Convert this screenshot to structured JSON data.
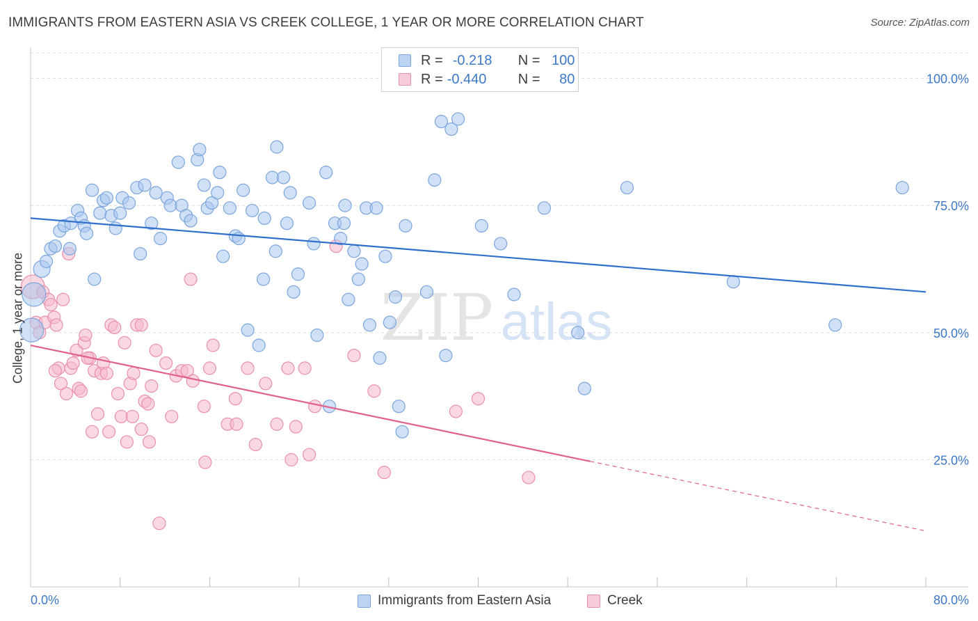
{
  "header": {
    "title": "IMMIGRANTS FROM EASTERN ASIA VS CREEK COLLEGE, 1 YEAR OR MORE CORRELATION CHART",
    "source": "Source: ZipAtlas.com"
  },
  "legend": {
    "rows": [
      {
        "r_label": "R =",
        "r_value": "-0.218",
        "n_label": "N =",
        "n_value": "100"
      },
      {
        "r_label": "R =",
        "r_value": "-0.440",
        "n_label": "N =",
        "n_value": "80"
      }
    ]
  },
  "watermark": {
    "zip": "ZIP",
    "atlas": "atlas"
  },
  "colors": {
    "blue_fill": "#a9c6ee",
    "blue_stroke": "#7aa5dd",
    "blue_line": "#2f6fcc",
    "pink_fill": "#f6b8cb",
    "pink_stroke": "#ea8fab",
    "pink_line": "#e0608e",
    "axis_text": "#3d78c8",
    "grid": "#dddddd"
  },
  "chart_data": {
    "type": "scatter",
    "title": "IMMIGRANTS FROM EASTERN ASIA VS CREEK COLLEGE, 1 YEAR OR MORE CORRELATION CHART",
    "xlabel": "",
    "ylabel": "College, 1 year or more",
    "xlim": [
      0,
      80
    ],
    "ylim": [
      0,
      105
    ],
    "x_tick_labels": [
      "0.0%",
      "80.0%"
    ],
    "y_tick_values": [
      25,
      50,
      75,
      100
    ],
    "y_tick_labels": [
      "25.0%",
      "50.0%",
      "75.0%",
      "100.0%"
    ],
    "grid": true,
    "legend_position": "top-center",
    "series": [
      {
        "name": "Immigrants from Eastern Asia",
        "color": "#a9c6ee",
        "trend": {
          "x": [
            0,
            80
          ],
          "y": [
            72.5,
            58.0
          ],
          "dashed_from": null
        },
        "points": [
          [
            0.1,
            50.5
          ],
          [
            0.3,
            57.5
          ],
          [
            1.0,
            62.5
          ],
          [
            1.4,
            64.0
          ],
          [
            1.8,
            66.5
          ],
          [
            2.2,
            67.0
          ],
          [
            2.6,
            70.0
          ],
          [
            3.0,
            71.0
          ],
          [
            3.5,
            66.5
          ],
          [
            3.6,
            71.5
          ],
          [
            4.2,
            74.0
          ],
          [
            4.5,
            72.5
          ],
          [
            4.8,
            71.0
          ],
          [
            5.0,
            69.5
          ],
          [
            5.5,
            78.0
          ],
          [
            5.7,
            60.5
          ],
          [
            6.2,
            73.5
          ],
          [
            6.5,
            76.0
          ],
          [
            6.8,
            76.5
          ],
          [
            7.2,
            73.0
          ],
          [
            7.6,
            70.5
          ],
          [
            8.0,
            73.5
          ],
          [
            8.2,
            76.5
          ],
          [
            8.8,
            75.5
          ],
          [
            9.5,
            78.5
          ],
          [
            9.8,
            65.5
          ],
          [
            10.2,
            79.0
          ],
          [
            10.8,
            71.5
          ],
          [
            11.2,
            77.5
          ],
          [
            11.6,
            68.5
          ],
          [
            12.2,
            76.5
          ],
          [
            12.5,
            75.0
          ],
          [
            13.2,
            83.5
          ],
          [
            13.5,
            75.0
          ],
          [
            13.9,
            73.0
          ],
          [
            14.3,
            72.0
          ],
          [
            14.9,
            84.0
          ],
          [
            15.1,
            86.0
          ],
          [
            15.5,
            79.0
          ],
          [
            15.8,
            74.5
          ],
          [
            16.2,
            75.5
          ],
          [
            16.7,
            77.5
          ],
          [
            16.9,
            81.5
          ],
          [
            17.2,
            65.0
          ],
          [
            17.8,
            74.5
          ],
          [
            18.3,
            69.0
          ],
          [
            18.6,
            68.5
          ],
          [
            19.0,
            78.0
          ],
          [
            19.4,
            50.5
          ],
          [
            19.8,
            74.0
          ],
          [
            20.4,
            47.5
          ],
          [
            20.8,
            60.5
          ],
          [
            20.9,
            72.5
          ],
          [
            21.6,
            80.5
          ],
          [
            21.9,
            66.0
          ],
          [
            22.0,
            86.5
          ],
          [
            22.6,
            80.5
          ],
          [
            22.9,
            71.5
          ],
          [
            23.2,
            77.5
          ],
          [
            23.5,
            58.0
          ],
          [
            23.9,
            61.5
          ],
          [
            24.9,
            75.5
          ],
          [
            25.3,
            67.5
          ],
          [
            25.6,
            49.5
          ],
          [
            26.4,
            81.5
          ],
          [
            26.7,
            35.5
          ],
          [
            27.2,
            71.5
          ],
          [
            27.7,
            68.5
          ],
          [
            28.0,
            71.5
          ],
          [
            28.4,
            56.5
          ],
          [
            28.9,
            66.0
          ],
          [
            29.3,
            60.5
          ],
          [
            29.6,
            63.5
          ],
          [
            30.0,
            74.5
          ],
          [
            30.3,
            51.5
          ],
          [
            30.9,
            74.5
          ],
          [
            31.2,
            45.0
          ],
          [
            31.7,
            65.0
          ],
          [
            32.1,
            52.0
          ],
          [
            32.6,
            57.0
          ],
          [
            32.9,
            35.5
          ],
          [
            33.2,
            30.5
          ],
          [
            33.5,
            71.0
          ],
          [
            35.4,
            58.0
          ],
          [
            36.1,
            80.0
          ],
          [
            36.7,
            91.5
          ],
          [
            37.1,
            45.5
          ],
          [
            37.6,
            90.0
          ],
          [
            38.2,
            92.0
          ],
          [
            40.3,
            71.0
          ],
          [
            42.0,
            67.5
          ],
          [
            43.2,
            57.5
          ],
          [
            45.9,
            74.5
          ],
          [
            48.9,
            50.0
          ],
          [
            49.5,
            39.0
          ],
          [
            53.3,
            78.5
          ],
          [
            62.8,
            60.0
          ],
          [
            71.9,
            51.5
          ],
          [
            77.9,
            78.5
          ],
          [
            28.1,
            75.0
          ]
        ]
      },
      {
        "name": "Creek",
        "color": "#f6b8cb",
        "trend": {
          "x": [
            0,
            80
          ],
          "y": [
            47.5,
            11.0
          ],
          "dashed_from": 50
        },
        "points": [
          [
            0.2,
            59.0
          ],
          [
            0.5,
            52.0
          ],
          [
            0.8,
            50.0
          ],
          [
            1.1,
            58.0
          ],
          [
            1.3,
            52.0
          ],
          [
            1.6,
            56.5
          ],
          [
            1.8,
            55.5
          ],
          [
            2.1,
            53.0
          ],
          [
            2.3,
            51.5
          ],
          [
            2.5,
            43.0
          ],
          [
            2.7,
            40.0
          ],
          [
            2.9,
            56.5
          ],
          [
            3.2,
            38.0
          ],
          [
            3.4,
            65.5
          ],
          [
            3.6,
            43.0
          ],
          [
            3.8,
            44.0
          ],
          [
            4.1,
            46.5
          ],
          [
            4.3,
            39.0
          ],
          [
            4.5,
            38.5
          ],
          [
            4.8,
            48.0
          ],
          [
            4.9,
            49.5
          ],
          [
            5.3,
            45.0
          ],
          [
            5.5,
            30.5
          ],
          [
            5.7,
            42.5
          ],
          [
            6.0,
            34.0
          ],
          [
            6.3,
            42.0
          ],
          [
            6.5,
            44.0
          ],
          [
            6.8,
            42.0
          ],
          [
            7.0,
            30.5
          ],
          [
            7.2,
            51.5
          ],
          [
            7.5,
            51.0
          ],
          [
            7.8,
            38.0
          ],
          [
            8.1,
            33.5
          ],
          [
            8.4,
            48.0
          ],
          [
            8.6,
            28.5
          ],
          [
            8.9,
            40.0
          ],
          [
            9.1,
            33.5
          ],
          [
            9.5,
            51.5
          ],
          [
            9.9,
            51.5
          ],
          [
            9.9,
            31.0
          ],
          [
            10.2,
            36.5
          ],
          [
            10.5,
            36.0
          ],
          [
            10.6,
            28.5
          ],
          [
            10.8,
            39.5
          ],
          [
            11.2,
            46.5
          ],
          [
            11.5,
            12.5
          ],
          [
            12.1,
            44.0
          ],
          [
            12.6,
            33.5
          ],
          [
            13.0,
            41.5
          ],
          [
            13.5,
            42.5
          ],
          [
            14.0,
            42.5
          ],
          [
            14.3,
            60.5
          ],
          [
            14.5,
            40.5
          ],
          [
            15.5,
            35.5
          ],
          [
            15.6,
            24.5
          ],
          [
            16.0,
            43.0
          ],
          [
            16.3,
            47.5
          ],
          [
            17.6,
            32.0
          ],
          [
            18.3,
            37.0
          ],
          [
            18.4,
            32.0
          ],
          [
            19.4,
            43.0
          ],
          [
            20.1,
            28.0
          ],
          [
            21.0,
            40.0
          ],
          [
            22.0,
            32.0
          ],
          [
            23.0,
            43.0
          ],
          [
            23.3,
            25.0
          ],
          [
            23.7,
            31.5
          ],
          [
            24.5,
            43.0
          ],
          [
            24.9,
            26.0
          ],
          [
            25.4,
            35.5
          ],
          [
            27.3,
            67.0
          ],
          [
            28.9,
            45.5
          ],
          [
            30.7,
            38.5
          ],
          [
            31.6,
            22.5
          ],
          [
            38.0,
            34.5
          ],
          [
            40.0,
            37.0
          ],
          [
            44.5,
            21.5
          ],
          [
            5.1,
            45.0
          ],
          [
            9.2,
            42.0
          ],
          [
            2.2,
            42.5
          ]
        ]
      }
    ]
  },
  "bottom_legend": [
    "Immigrants from Eastern Asia",
    "Creek"
  ],
  "axes": {
    "x_min_label": "0.0%",
    "x_max_label": "80.0%",
    "y_label": "College, 1 year or more"
  }
}
